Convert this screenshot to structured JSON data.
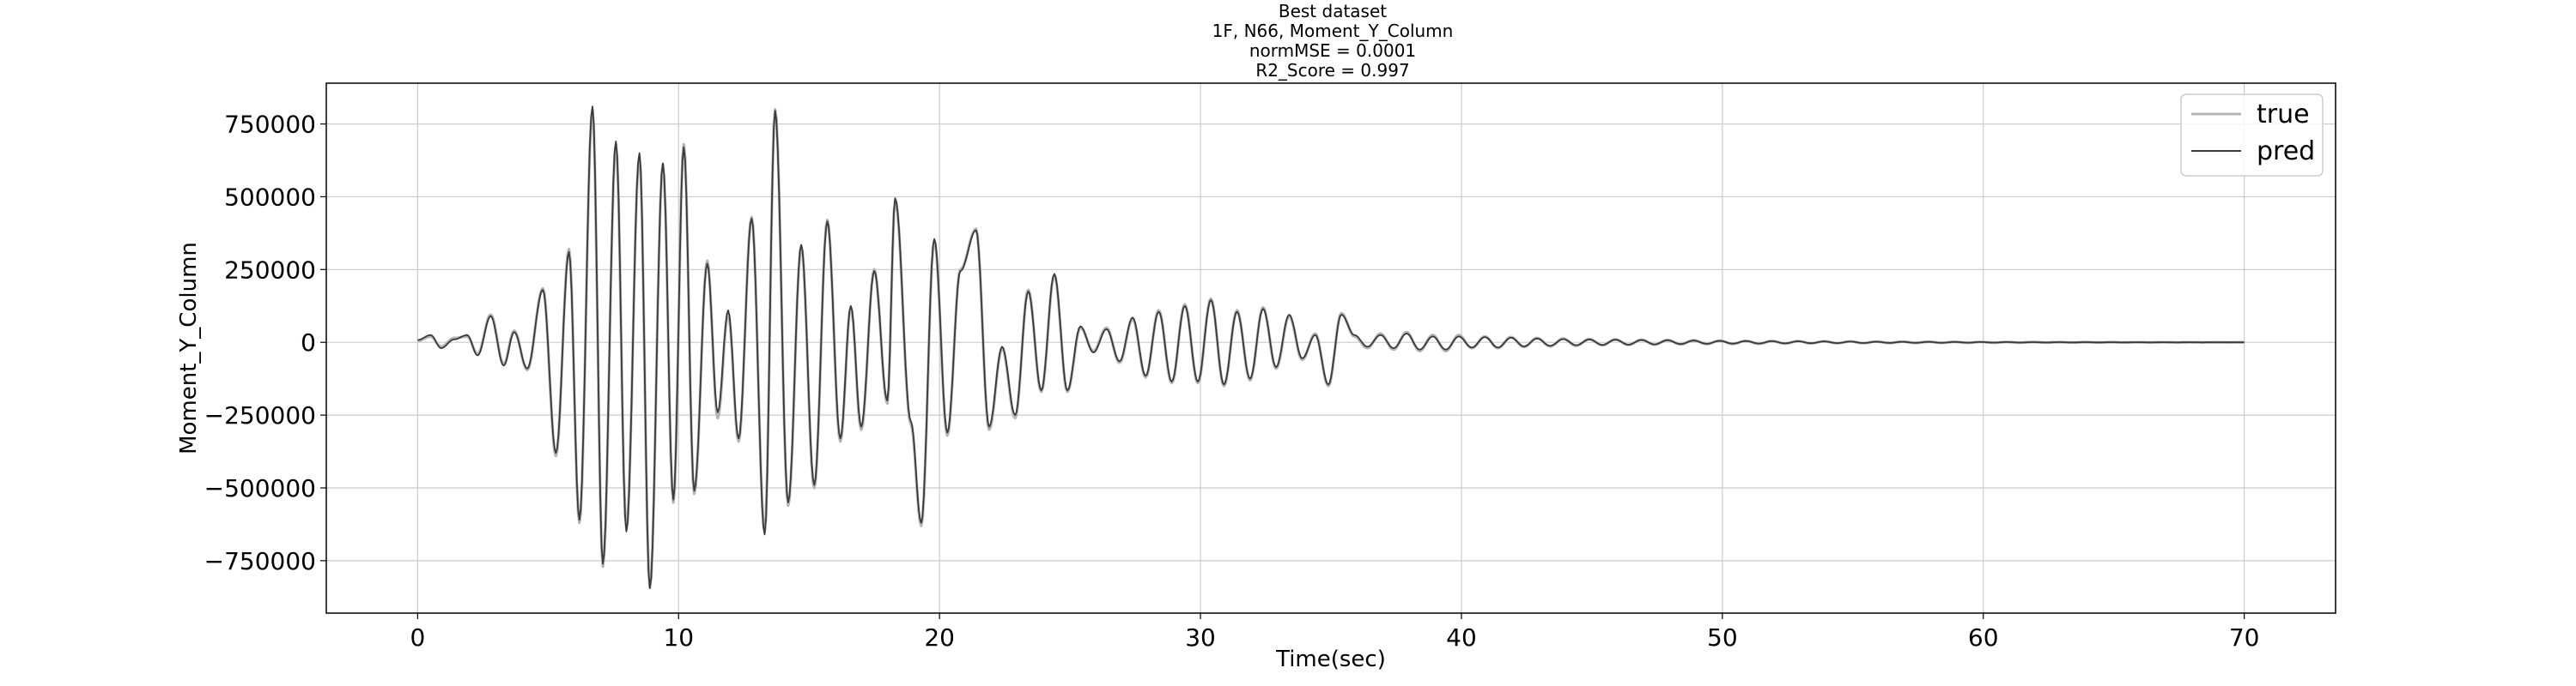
{
  "chart_data": {
    "type": "line",
    "title_lines": [
      "Best dataset",
      "1F, N66, Moment_Y_Column",
      "normMSE = 0.0001",
      "R2_Score = 0.997"
    ],
    "xlabel": "Time(sec)",
    "ylabel": "Moment_Y_Column",
    "xlim": [
      -3.5,
      73.5
    ],
    "ylim": [
      -930000,
      890000
    ],
    "x_ticks": [
      0,
      10,
      20,
      30,
      40,
      50,
      60,
      70
    ],
    "y_ticks": [
      -750000,
      -500000,
      -250000,
      0,
      250000,
      500000,
      750000
    ],
    "grid": true,
    "legend_position": "top-right",
    "colors": {
      "true": "#b4b4b4",
      "pred": "#3a3a3a"
    },
    "sampling": {
      "start": 0,
      "end": 70,
      "step": 0.05
    },
    "series": [
      {
        "name": "true",
        "peaks": [
          [
            0.0,
            5000
          ],
          [
            0.5,
            20000
          ],
          [
            0.9,
            -15000
          ],
          [
            1.4,
            15000
          ],
          [
            1.9,
            20000
          ],
          [
            2.3,
            -40000
          ],
          [
            2.8,
            95000
          ],
          [
            3.3,
            -75000
          ],
          [
            3.7,
            40000
          ],
          [
            4.2,
            -95000
          ],
          [
            4.8,
            185000
          ],
          [
            5.3,
            -390000
          ],
          [
            5.8,
            320000
          ],
          [
            6.2,
            -620000
          ],
          [
            6.7,
            800000
          ],
          [
            7.1,
            -770000
          ],
          [
            7.6,
            680000
          ],
          [
            8.0,
            -640000
          ],
          [
            8.5,
            640000
          ],
          [
            8.9,
            -840000
          ],
          [
            9.4,
            610000
          ],
          [
            9.8,
            -550000
          ],
          [
            10.2,
            680000
          ],
          [
            10.6,
            -520000
          ],
          [
            11.1,
            280000
          ],
          [
            11.5,
            -260000
          ],
          [
            11.9,
            100000
          ],
          [
            12.3,
            -340000
          ],
          [
            12.8,
            430000
          ],
          [
            13.3,
            -650000
          ],
          [
            13.7,
            800000
          ],
          [
            14.2,
            -560000
          ],
          [
            14.7,
            330000
          ],
          [
            15.2,
            -500000
          ],
          [
            15.7,
            420000
          ],
          [
            16.2,
            -340000
          ],
          [
            16.6,
            120000
          ],
          [
            17.0,
            -300000
          ],
          [
            17.5,
            250000
          ],
          [
            18.0,
            -210000
          ],
          [
            18.3,
            490000
          ],
          [
            18.9,
            -280000
          ],
          [
            19.3,
            -630000
          ],
          [
            19.8,
            350000
          ],
          [
            20.3,
            -320000
          ],
          [
            20.8,
            250000
          ],
          [
            21.4,
            390000
          ],
          [
            21.9,
            -300000
          ],
          [
            22.4,
            -20000
          ],
          [
            22.9,
            -260000
          ],
          [
            23.4,
            180000
          ],
          [
            23.9,
            -170000
          ],
          [
            24.4,
            230000
          ],
          [
            24.9,
            -170000
          ],
          [
            25.4,
            50000
          ],
          [
            25.9,
            -30000
          ],
          [
            26.4,
            50000
          ],
          [
            26.9,
            -70000
          ],
          [
            27.4,
            80000
          ],
          [
            27.9,
            -120000
          ],
          [
            28.4,
            110000
          ],
          [
            28.9,
            -140000
          ],
          [
            29.4,
            130000
          ],
          [
            29.9,
            -140000
          ],
          [
            30.4,
            150000
          ],
          [
            30.9,
            -150000
          ],
          [
            31.4,
            110000
          ],
          [
            31.9,
            -130000
          ],
          [
            32.4,
            120000
          ],
          [
            32.9,
            -90000
          ],
          [
            33.4,
            90000
          ],
          [
            33.9,
            -60000
          ],
          [
            34.4,
            30000
          ],
          [
            34.9,
            -150000
          ],
          [
            35.4,
            100000
          ],
          [
            35.9,
            20000
          ],
          [
            36.4,
            -20000
          ],
          [
            36.9,
            30000
          ],
          [
            37.4,
            -25000
          ],
          [
            37.9,
            35000
          ],
          [
            38.4,
            -30000
          ],
          [
            38.9,
            25000
          ],
          [
            39.4,
            -30000
          ],
          [
            39.9,
            25000
          ],
          [
            40.4,
            -20000
          ],
          [
            40.9,
            20000
          ],
          [
            41.4,
            -20000
          ],
          [
            41.9,
            18000
          ],
          [
            42.4,
            -16000
          ],
          [
            42.9,
            15000
          ],
          [
            43.4,
            -14000
          ],
          [
            43.9,
            13000
          ],
          [
            44.4,
            -12000
          ],
          [
            44.9,
            11000
          ],
          [
            45.4,
            -10000
          ],
          [
            45.9,
            10000
          ],
          [
            46.4,
            -9000
          ],
          [
            46.9,
            9000
          ],
          [
            47.4,
            -8000
          ],
          [
            47.9,
            8000
          ],
          [
            48.4,
            -7000
          ],
          [
            48.9,
            7000
          ],
          [
            49.4,
            -6000
          ],
          [
            49.9,
            6000
          ],
          [
            50.4,
            -5500
          ],
          [
            50.9,
            5000
          ],
          [
            51.4,
            -5000
          ],
          [
            51.9,
            4500
          ],
          [
            52.4,
            -4000
          ],
          [
            52.9,
            4000
          ],
          [
            53.4,
            -3500
          ],
          [
            53.9,
            3500
          ],
          [
            54.4,
            -3000
          ],
          [
            54.9,
            3000
          ],
          [
            55.4,
            -2800
          ],
          [
            55.9,
            2500
          ],
          [
            56.4,
            -2300
          ],
          [
            56.9,
            2200
          ],
          [
            57.4,
            -2000
          ],
          [
            57.9,
            1800
          ],
          [
            58.4,
            -1700
          ],
          [
            58.9,
            1500
          ],
          [
            59.4,
            -1400
          ],
          [
            59.9,
            1300
          ],
          [
            60.4,
            -1200
          ],
          [
            60.9,
            1100
          ],
          [
            61.4,
            -1000
          ],
          [
            61.9,
            900
          ],
          [
            62.4,
            -800
          ],
          [
            62.9,
            700
          ],
          [
            63.4,
            -600
          ],
          [
            63.9,
            600
          ],
          [
            64.4,
            -500
          ],
          [
            64.9,
            500
          ],
          [
            65.4,
            -400
          ],
          [
            65.9,
            400
          ],
          [
            66.4,
            -300
          ],
          [
            66.9,
            300
          ],
          [
            67.4,
            -250
          ],
          [
            67.9,
            250
          ],
          [
            68.4,
            -200
          ],
          [
            68.9,
            200
          ],
          [
            69.4,
            -150
          ],
          [
            70.0,
            0
          ]
        ]
      },
      {
        "name": "pred",
        "peaks": [
          [
            0.0,
            8000
          ],
          [
            0.5,
            25000
          ],
          [
            0.9,
            -20000
          ],
          [
            1.4,
            10000
          ],
          [
            1.9,
            25000
          ],
          [
            2.3,
            -45000
          ],
          [
            2.8,
            90000
          ],
          [
            3.3,
            -80000
          ],
          [
            3.7,
            35000
          ],
          [
            4.2,
            -90000
          ],
          [
            4.8,
            180000
          ],
          [
            5.3,
            -380000
          ],
          [
            5.8,
            310000
          ],
          [
            6.2,
            -610000
          ],
          [
            6.7,
            810000
          ],
          [
            7.1,
            -760000
          ],
          [
            7.6,
            690000
          ],
          [
            8.0,
            -650000
          ],
          [
            8.5,
            650000
          ],
          [
            8.9,
            -845000
          ],
          [
            9.4,
            615000
          ],
          [
            9.8,
            -540000
          ],
          [
            10.2,
            670000
          ],
          [
            10.6,
            -510000
          ],
          [
            11.1,
            270000
          ],
          [
            11.5,
            -240000
          ],
          [
            11.9,
            110000
          ],
          [
            12.3,
            -330000
          ],
          [
            12.8,
            425000
          ],
          [
            13.3,
            -660000
          ],
          [
            13.7,
            795000
          ],
          [
            14.2,
            -550000
          ],
          [
            14.7,
            335000
          ],
          [
            15.2,
            -490000
          ],
          [
            15.7,
            415000
          ],
          [
            16.2,
            -330000
          ],
          [
            16.6,
            125000
          ],
          [
            17.0,
            -290000
          ],
          [
            17.5,
            245000
          ],
          [
            18.0,
            -200000
          ],
          [
            18.3,
            495000
          ],
          [
            18.9,
            -270000
          ],
          [
            19.3,
            -620000
          ],
          [
            19.8,
            355000
          ],
          [
            20.3,
            -310000
          ],
          [
            20.8,
            245000
          ],
          [
            21.4,
            385000
          ],
          [
            21.9,
            -290000
          ],
          [
            22.4,
            -15000
          ],
          [
            22.9,
            -250000
          ],
          [
            23.4,
            175000
          ],
          [
            23.9,
            -165000
          ],
          [
            24.4,
            235000
          ],
          [
            24.9,
            -165000
          ],
          [
            25.4,
            55000
          ],
          [
            25.9,
            -35000
          ],
          [
            26.4,
            45000
          ],
          [
            26.9,
            -65000
          ],
          [
            27.4,
            85000
          ],
          [
            27.9,
            -115000
          ],
          [
            28.4,
            105000
          ],
          [
            28.9,
            -135000
          ],
          [
            29.4,
            125000
          ],
          [
            29.9,
            -135000
          ],
          [
            30.4,
            145000
          ],
          [
            30.9,
            -145000
          ],
          [
            31.4,
            105000
          ],
          [
            31.9,
            -125000
          ],
          [
            32.4,
            115000
          ],
          [
            32.9,
            -85000
          ],
          [
            33.4,
            95000
          ],
          [
            33.9,
            -55000
          ],
          [
            34.4,
            25000
          ],
          [
            34.9,
            -145000
          ],
          [
            35.4,
            95000
          ],
          [
            35.9,
            25000
          ],
          [
            36.4,
            -15000
          ],
          [
            36.9,
            25000
          ],
          [
            37.4,
            -20000
          ],
          [
            37.9,
            30000
          ],
          [
            38.4,
            -25000
          ],
          [
            38.9,
            20000
          ],
          [
            39.4,
            -25000
          ],
          [
            39.9,
            20000
          ],
          [
            40.4,
            -18000
          ],
          [
            40.9,
            18000
          ],
          [
            41.4,
            -18000
          ],
          [
            41.9,
            16000
          ],
          [
            42.4,
            -14000
          ],
          [
            42.9,
            13000
          ],
          [
            43.4,
            -12000
          ],
          [
            43.9,
            11000
          ],
          [
            44.4,
            -10000
          ],
          [
            44.9,
            10000
          ],
          [
            45.4,
            -9000
          ],
          [
            45.9,
            9000
          ],
          [
            46.4,
            -8000
          ],
          [
            46.9,
            8000
          ],
          [
            47.4,
            -7000
          ],
          [
            47.9,
            7000
          ],
          [
            48.4,
            -6000
          ],
          [
            48.9,
            6000
          ],
          [
            49.4,
            -5000
          ],
          [
            49.9,
            5000
          ],
          [
            50.4,
            -4500
          ],
          [
            50.9,
            4500
          ],
          [
            51.4,
            -4000
          ],
          [
            51.9,
            4000
          ],
          [
            52.4,
            -3500
          ],
          [
            52.9,
            3500
          ],
          [
            53.4,
            -3000
          ],
          [
            53.9,
            3000
          ],
          [
            54.4,
            -2500
          ],
          [
            54.9,
            2500
          ],
          [
            55.4,
            -2200
          ],
          [
            55.9,
            2000
          ],
          [
            56.4,
            -1800
          ],
          [
            56.9,
            1800
          ],
          [
            57.4,
            -1600
          ],
          [
            57.9,
            1500
          ],
          [
            58.4,
            -1400
          ],
          [
            58.9,
            1300
          ],
          [
            59.4,
            -1200
          ],
          [
            59.9,
            1100
          ],
          [
            60.4,
            -1000
          ],
          [
            60.9,
            900
          ],
          [
            61.4,
            -800
          ],
          [
            61.9,
            700
          ],
          [
            62.4,
            -600
          ],
          [
            62.9,
            600
          ],
          [
            63.4,
            -500
          ],
          [
            63.9,
            500
          ],
          [
            64.4,
            -400
          ],
          [
            64.9,
            400
          ],
          [
            65.4,
            -300
          ],
          [
            65.9,
            300
          ],
          [
            66.4,
            -250
          ],
          [
            66.9,
            250
          ],
          [
            67.4,
            -200
          ],
          [
            67.9,
            200
          ],
          [
            68.4,
            -150
          ],
          [
            68.9,
            150
          ],
          [
            69.4,
            -100
          ],
          [
            70.0,
            0
          ]
        ]
      }
    ]
  }
}
